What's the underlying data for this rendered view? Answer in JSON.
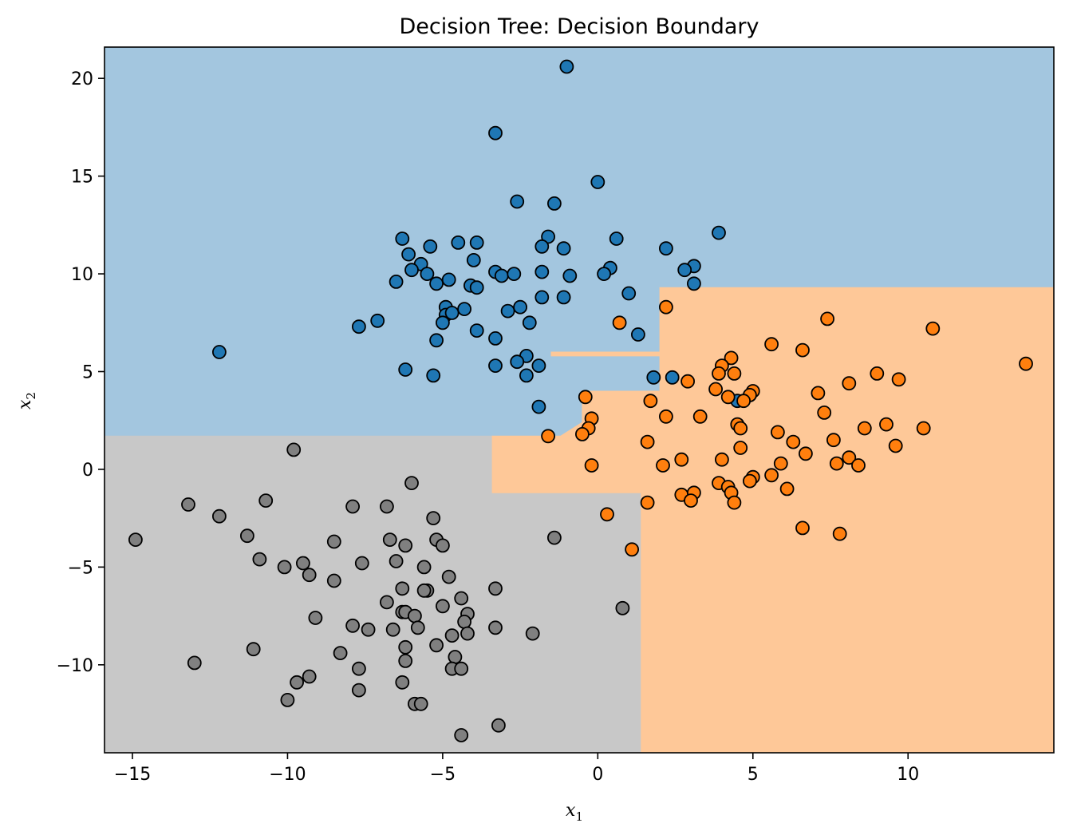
{
  "chart_data": {
    "type": "scatter",
    "title": "Decision Tree: Decision Boundary",
    "xlabel": {
      "base": "x",
      "sub": "1"
    },
    "ylabel": {
      "base": "x",
      "sub": "2"
    },
    "xlim": [
      -15.9,
      14.7
    ],
    "ylim": [
      -14.5,
      21.6
    ],
    "x_ticks": [
      -15,
      -10,
      -5,
      0,
      5,
      10
    ],
    "x_tick_labels": [
      "−15",
      "−10",
      "−5",
      "0",
      "5",
      "10"
    ],
    "y_ticks": [
      -10,
      -5,
      0,
      5,
      10,
      15,
      20
    ],
    "y_tick_labels": [
      "−10",
      "−5",
      "0",
      "5",
      "10",
      "15",
      "20"
    ],
    "grid": false,
    "colors": {
      "class0": "#1f77b4",
      "class1": "#ff7f0e",
      "class2": "#808080",
      "region0": "#a3c6df",
      "region1": "#fec898",
      "region2": "#c8c8c8",
      "marker_edge": "#000000"
    },
    "regions": [
      {
        "class": 2,
        "polygon": [
          [
            -15.9,
            -14.5
          ],
          [
            1.4,
            -14.5
          ],
          [
            1.4,
            -1.2
          ],
          [
            -3.4,
            -1.2
          ],
          [
            -3.4,
            1.7
          ],
          [
            -15.9,
            1.7
          ]
        ]
      },
      {
        "class": 1,
        "polygon": [
          [
            1.4,
            -14.5
          ],
          [
            14.7,
            -14.5
          ],
          [
            14.7,
            9.3
          ],
          [
            2.0,
            9.3
          ],
          [
            2.0,
            6.0
          ],
          [
            -1.5,
            6.0
          ],
          [
            -1.5,
            5.8
          ],
          [
            2.0,
            5.8
          ],
          [
            2.0,
            4.0
          ],
          [
            -0.5,
            4.0
          ],
          [
            -0.5,
            2.4
          ],
          [
            -1.2,
            1.7
          ],
          [
            -3.4,
            1.7
          ],
          [
            -3.4,
            -1.2
          ],
          [
            1.4,
            -1.2
          ]
        ]
      }
    ],
    "series": [
      {
        "class": 0,
        "points": [
          [
            -1.0,
            20.6
          ],
          [
            -3.3,
            17.2
          ],
          [
            0.0,
            14.7
          ],
          [
            -2.6,
            13.7
          ],
          [
            -1.4,
            13.6
          ],
          [
            3.9,
            12.1
          ],
          [
            -6.3,
            11.8
          ],
          [
            -4.5,
            11.6
          ],
          [
            -3.9,
            11.6
          ],
          [
            -1.6,
            11.9
          ],
          [
            0.6,
            11.8
          ],
          [
            -5.4,
            11.4
          ],
          [
            -1.8,
            11.4
          ],
          [
            -1.1,
            11.3
          ],
          [
            2.2,
            11.3
          ],
          [
            -6.1,
            11.0
          ],
          [
            -4.0,
            10.7
          ],
          [
            -5.7,
            10.5
          ],
          [
            3.1,
            10.4
          ],
          [
            2.8,
            10.2
          ],
          [
            0.4,
            10.3
          ],
          [
            -6.0,
            10.2
          ],
          [
            -5.5,
            10.0
          ],
          [
            -3.3,
            10.1
          ],
          [
            -3.1,
            9.9
          ],
          [
            -2.7,
            10.0
          ],
          [
            -1.8,
            10.1
          ],
          [
            -0.9,
            9.9
          ],
          [
            0.2,
            10.0
          ],
          [
            -6.5,
            9.6
          ],
          [
            -4.8,
            9.7
          ],
          [
            -5.2,
            9.5
          ],
          [
            -4.1,
            9.4
          ],
          [
            -3.9,
            9.3
          ],
          [
            3.1,
            9.5
          ],
          [
            1.0,
            9.0
          ],
          [
            -1.1,
            8.8
          ],
          [
            -1.8,
            8.8
          ],
          [
            -4.9,
            8.3
          ],
          [
            -4.3,
            8.2
          ],
          [
            -2.5,
            8.3
          ],
          [
            -2.9,
            8.1
          ],
          [
            -4.9,
            7.9
          ],
          [
            -4.7,
            8.0
          ],
          [
            -7.7,
            7.3
          ],
          [
            -7.1,
            7.6
          ],
          [
            -5.0,
            7.5
          ],
          [
            -2.2,
            7.5
          ],
          [
            -3.9,
            7.1
          ],
          [
            -3.3,
            6.7
          ],
          [
            1.3,
            6.9
          ],
          [
            -5.2,
            6.6
          ],
          [
            -12.2,
            6.0
          ],
          [
            -2.3,
            5.8
          ],
          [
            -2.6,
            5.5
          ],
          [
            -3.3,
            5.3
          ],
          [
            -1.9,
            5.3
          ],
          [
            -6.2,
            5.1
          ],
          [
            -5.3,
            4.8
          ],
          [
            -2.3,
            4.8
          ],
          [
            1.8,
            4.7
          ],
          [
            2.4,
            4.7
          ],
          [
            4.5,
            3.5
          ],
          [
            -1.9,
            3.2
          ]
        ]
      },
      {
        "class": 1,
        "points": [
          [
            2.2,
            8.3
          ],
          [
            7.4,
            7.7
          ],
          [
            10.8,
            7.2
          ],
          [
            0.7,
            7.5
          ],
          [
            5.6,
            6.4
          ],
          [
            6.6,
            6.1
          ],
          [
            4.3,
            5.7
          ],
          [
            13.8,
            5.4
          ],
          [
            4.0,
            5.3
          ],
          [
            3.9,
            4.9
          ],
          [
            4.4,
            4.9
          ],
          [
            9.0,
            4.9
          ],
          [
            9.7,
            4.6
          ],
          [
            2.9,
            4.5
          ],
          [
            8.1,
            4.4
          ],
          [
            3.8,
            4.1
          ],
          [
            5.0,
            4.0
          ],
          [
            4.9,
            3.8
          ],
          [
            7.1,
            3.9
          ],
          [
            4.2,
            3.7
          ],
          [
            -0.4,
            3.7
          ],
          [
            1.7,
            3.5
          ],
          [
            4.7,
            3.5
          ],
          [
            7.3,
            2.9
          ],
          [
            2.2,
            2.7
          ],
          [
            3.3,
            2.7
          ],
          [
            -0.2,
            2.6
          ],
          [
            4.5,
            2.3
          ],
          [
            9.3,
            2.3
          ],
          [
            4.6,
            2.1
          ],
          [
            -0.3,
            2.1
          ],
          [
            8.6,
            2.1
          ],
          [
            10.5,
            2.1
          ],
          [
            5.8,
            1.9
          ],
          [
            -0.5,
            1.8
          ],
          [
            -1.6,
            1.7
          ],
          [
            7.6,
            1.5
          ],
          [
            1.6,
            1.4
          ],
          [
            6.3,
            1.4
          ],
          [
            9.6,
            1.2
          ],
          [
            4.6,
            1.1
          ],
          [
            6.7,
            0.8
          ],
          [
            4.0,
            0.5
          ],
          [
            2.7,
            0.5
          ],
          [
            8.1,
            0.6
          ],
          [
            5.9,
            0.3
          ],
          [
            7.7,
            0.3
          ],
          [
            8.4,
            0.2
          ],
          [
            -0.2,
            0.2
          ],
          [
            2.1,
            0.2
          ],
          [
            5.0,
            -0.4
          ],
          [
            4.9,
            -0.6
          ],
          [
            5.6,
            -0.3
          ],
          [
            3.9,
            -0.7
          ],
          [
            4.2,
            -0.9
          ],
          [
            6.1,
            -1.0
          ],
          [
            2.7,
            -1.3
          ],
          [
            3.1,
            -1.2
          ],
          [
            4.3,
            -1.2
          ],
          [
            3.0,
            -1.6
          ],
          [
            4.4,
            -1.7
          ],
          [
            1.6,
            -1.7
          ],
          [
            0.3,
            -2.3
          ],
          [
            6.6,
            -3.0
          ],
          [
            7.8,
            -3.3
          ],
          [
            1.1,
            -4.1
          ]
        ]
      },
      {
        "class": 2,
        "points": [
          [
            -9.8,
            1.0
          ],
          [
            -6.0,
            -0.7
          ],
          [
            -13.2,
            -1.8
          ],
          [
            -10.7,
            -1.6
          ],
          [
            -7.9,
            -1.9
          ],
          [
            -6.8,
            -1.9
          ],
          [
            -12.2,
            -2.4
          ],
          [
            -5.3,
            -2.5
          ],
          [
            -11.3,
            -3.4
          ],
          [
            -1.4,
            -3.5
          ],
          [
            -14.9,
            -3.6
          ],
          [
            -8.5,
            -3.7
          ],
          [
            -6.7,
            -3.6
          ],
          [
            -5.2,
            -3.6
          ],
          [
            -6.2,
            -3.9
          ],
          [
            -5.0,
            -3.9
          ],
          [
            -10.9,
            -4.6
          ],
          [
            -9.5,
            -4.8
          ],
          [
            -7.6,
            -4.8
          ],
          [
            -6.5,
            -4.7
          ],
          [
            -10.1,
            -5.0
          ],
          [
            -5.6,
            -5.0
          ],
          [
            -9.3,
            -5.4
          ],
          [
            -8.5,
            -5.7
          ],
          [
            -4.8,
            -5.5
          ],
          [
            -3.3,
            -6.1
          ],
          [
            -6.3,
            -6.1
          ],
          [
            -5.5,
            -6.2
          ],
          [
            -5.6,
            -6.2
          ],
          [
            -4.4,
            -6.6
          ],
          [
            -6.8,
            -6.8
          ],
          [
            -5.0,
            -7.0
          ],
          [
            -6.3,
            -7.3
          ],
          [
            -6.2,
            -7.3
          ],
          [
            -5.9,
            -7.5
          ],
          [
            -9.1,
            -7.6
          ],
          [
            -4.2,
            -7.4
          ],
          [
            -4.3,
            -7.8
          ],
          [
            -7.9,
            -8.0
          ],
          [
            -7.4,
            -8.2
          ],
          [
            -6.6,
            -8.2
          ],
          [
            -5.8,
            -8.1
          ],
          [
            -3.3,
            -8.1
          ],
          [
            -4.7,
            -8.5
          ],
          [
            -4.2,
            -8.4
          ],
          [
            -2.1,
            -8.4
          ],
          [
            -6.2,
            -9.1
          ],
          [
            -5.2,
            -9.0
          ],
          [
            -11.1,
            -9.2
          ],
          [
            -8.3,
            -9.4
          ],
          [
            -4.6,
            -9.6
          ],
          [
            -6.2,
            -9.8
          ],
          [
            -13.0,
            -9.9
          ],
          [
            -7.7,
            -10.2
          ],
          [
            -4.7,
            -10.2
          ],
          [
            -4.4,
            -10.2
          ],
          [
            -9.3,
            -10.6
          ],
          [
            -9.7,
            -10.9
          ],
          [
            -6.3,
            -10.9
          ],
          [
            -7.7,
            -11.3
          ],
          [
            -10.0,
            -11.8
          ],
          [
            -5.9,
            -12.0
          ],
          [
            -5.7,
            -12.0
          ],
          [
            -3.2,
            -13.1
          ],
          [
            -4.4,
            -13.6
          ],
          [
            0.8,
            -7.1
          ]
        ]
      }
    ]
  }
}
